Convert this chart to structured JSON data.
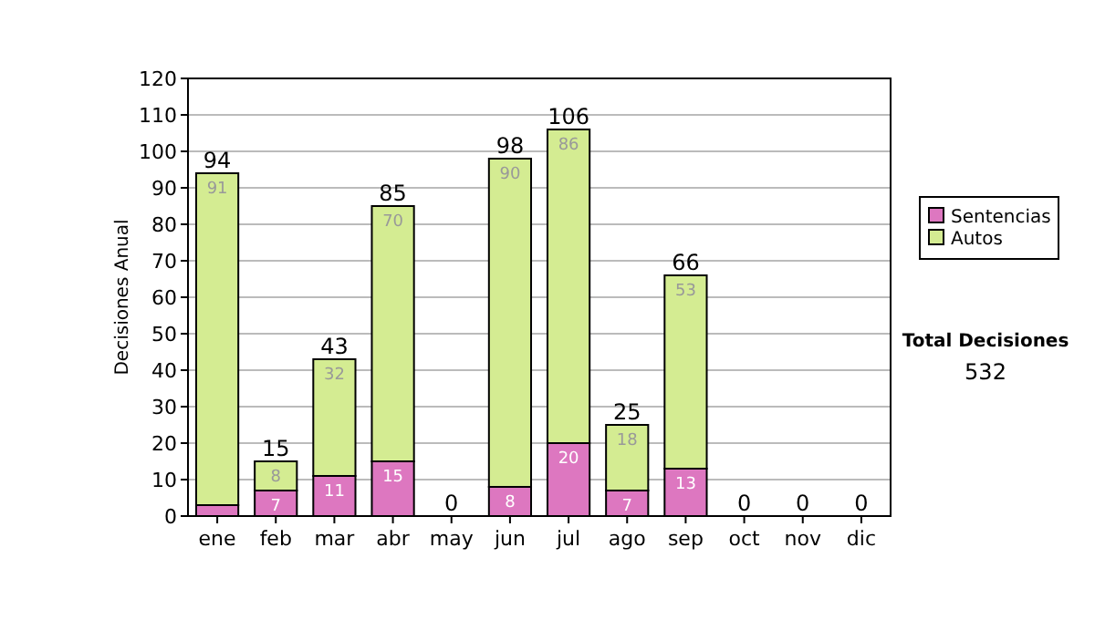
{
  "chart_data": {
    "type": "bar",
    "stacked": true,
    "ylabel": "Decisiones Anual",
    "categories": [
      "ene",
      "feb",
      "mar",
      "abr",
      "may",
      "jun",
      "jul",
      "ago",
      "sep",
      "oct",
      "nov",
      "dic"
    ],
    "series": [
      {
        "name": "Sentencias",
        "color": "#dd77c0",
        "values": [
          3,
          7,
          11,
          15,
          0,
          8,
          20,
          7,
          13,
          0,
          0,
          0
        ],
        "value_labels": [
          null,
          "7",
          "11",
          "15",
          null,
          "8",
          "20",
          "7",
          "13",
          null,
          null,
          null
        ]
      },
      {
        "name": "Autos",
        "color": "#d4ec92",
        "values": [
          91,
          8,
          32,
          70,
          0,
          90,
          86,
          18,
          53,
          0,
          0,
          0
        ],
        "value_labels": [
          "91",
          "8",
          "32",
          "70",
          null,
          "90",
          "86",
          "18",
          "53",
          null,
          null,
          null
        ]
      }
    ],
    "totals": [
      "94",
      "15",
      "43",
      "85",
      "0",
      "98",
      "106",
      "25",
      "66",
      "0",
      "0",
      "0"
    ],
    "ylim": [
      0,
      120
    ],
    "yticks": [
      0,
      10,
      20,
      30,
      40,
      50,
      60,
      70,
      80,
      90,
      100,
      110,
      120
    ],
    "grid": "y",
    "legend": "right",
    "annotations": [
      "Total Decisiones",
      "532"
    ]
  }
}
